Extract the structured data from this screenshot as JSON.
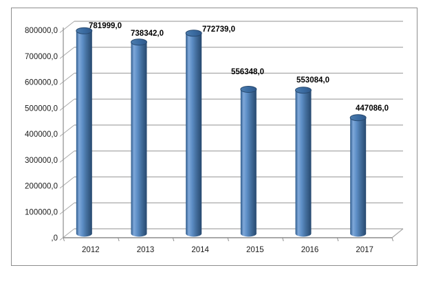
{
  "chart_data": {
    "type": "bar",
    "style": "3d-cylinder",
    "title": "",
    "xlabel": "",
    "ylabel": "",
    "categories": [
      "2012",
      "2013",
      "2014",
      "2015",
      "2016",
      "2017"
    ],
    "values": [
      781999,
      738342,
      772739,
      556348,
      553084,
      447086
    ],
    "value_labels": [
      "781999,0",
      "738342,0",
      "772739,0",
      "556348,0",
      "553084,0",
      "447086,0"
    ],
    "yticklabels": [
      ",0",
      "100000,0",
      "200000,0",
      "300000,0",
      "400000,0",
      "500000,0",
      "600000,0",
      "700000,0",
      "800000,0"
    ],
    "ytick_values": [
      0,
      100000,
      200000,
      300000,
      400000,
      500000,
      600000,
      700000,
      800000
    ],
    "ylim": [
      0,
      800000
    ],
    "grid": true,
    "legend": false,
    "colors": {
      "bar_main": "#4f81bd",
      "bar_highlight": "#7fa8d9",
      "bar_dark_edge": "#27496f",
      "bar_top": "#3a6ba1",
      "bar_top_stroke": "#27496f",
      "gridline": "#a8a8a8",
      "axis_line": "#8c8c8c",
      "frame_border": "#8c8c8c",
      "label_text": "#000000",
      "tick_text": "#1a1a1a",
      "background": "#ffffff"
    }
  }
}
